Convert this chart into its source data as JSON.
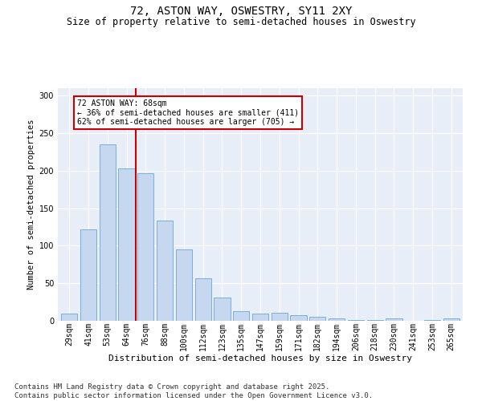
{
  "title": "72, ASTON WAY, OSWESTRY, SY11 2XY",
  "subtitle": "Size of property relative to semi-detached houses in Oswestry",
  "xlabel": "Distribution of semi-detached houses by size in Oswestry",
  "ylabel": "Number of semi-detached properties",
  "categories": [
    "29sqm",
    "41sqm",
    "53sqm",
    "64sqm",
    "76sqm",
    "88sqm",
    "100sqm",
    "112sqm",
    "123sqm",
    "135sqm",
    "147sqm",
    "159sqm",
    "171sqm",
    "182sqm",
    "194sqm",
    "206sqm",
    "218sqm",
    "230sqm",
    "241sqm",
    "253sqm",
    "265sqm"
  ],
  "values": [
    10,
    122,
    235,
    203,
    197,
    134,
    95,
    57,
    31,
    13,
    10,
    11,
    7,
    5,
    3,
    1,
    1,
    3,
    0,
    1,
    3
  ],
  "bar_color": "#c5d8f0",
  "bar_edge_color": "#7aafd4",
  "vline_x": 3.5,
  "vline_color": "#cc0000",
  "annotation_text": "72 ASTON WAY: 68sqm\n← 36% of semi-detached houses are smaller (411)\n62% of semi-detached houses are larger (705) →",
  "annotation_box_color": "#ffffff",
  "annotation_box_edge": "#cc0000",
  "ylim": [
    0,
    310
  ],
  "yticks": [
    0,
    50,
    100,
    150,
    200,
    250,
    300
  ],
  "background_color": "#e8eef8",
  "footer_text": "Contains HM Land Registry data © Crown copyright and database right 2025.\nContains public sector information licensed under the Open Government Licence v3.0.",
  "title_fontsize": 10,
  "subtitle_fontsize": 8.5,
  "xlabel_fontsize": 8,
  "ylabel_fontsize": 7.5,
  "tick_fontsize": 7,
  "footer_fontsize": 6.5,
  "annot_fontsize": 7
}
